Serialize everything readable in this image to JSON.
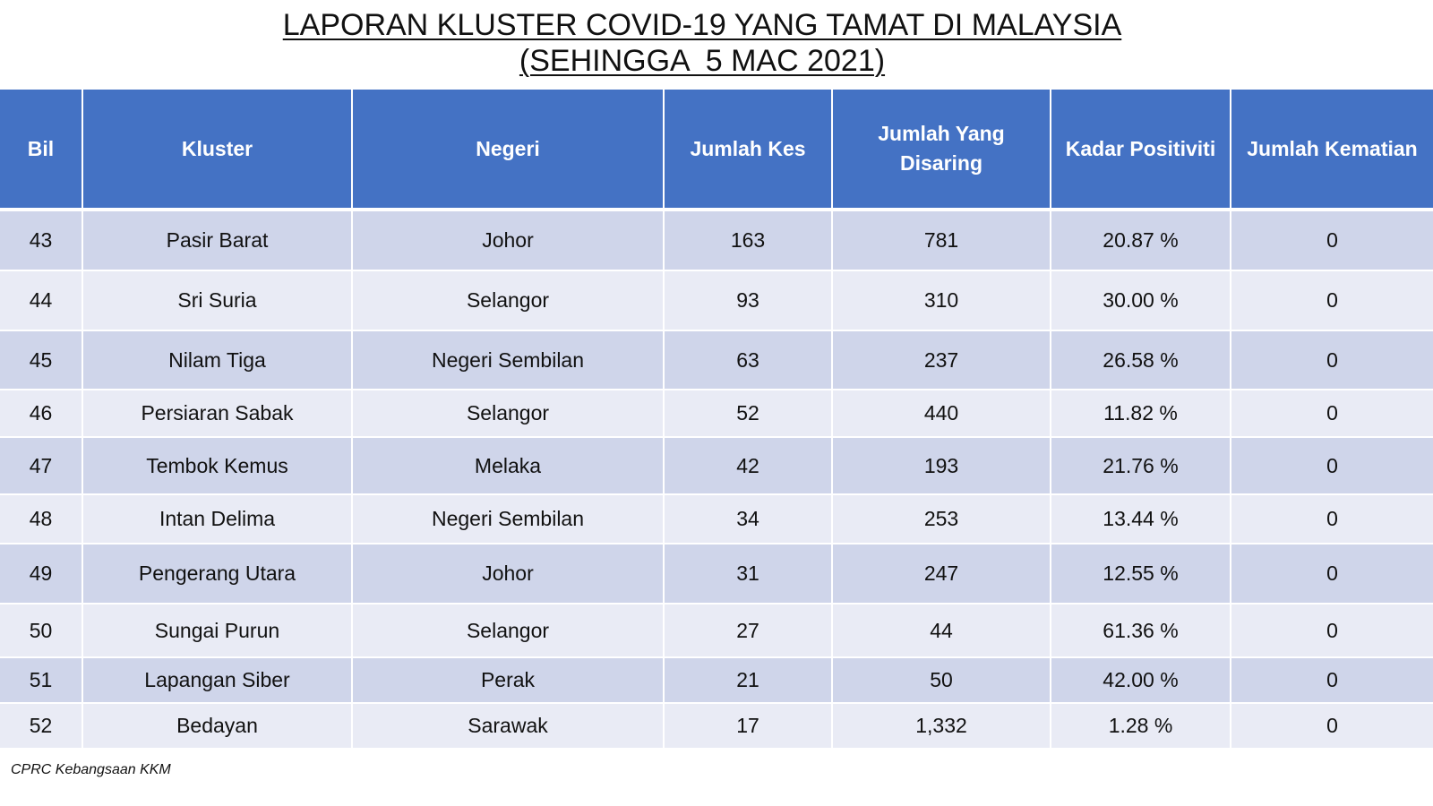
{
  "title": {
    "line1": "LAPORAN KLUSTER COVID-19 YANG TAMAT DI MALAYSIA",
    "line2": "(SEHINGGA  5 MAC 2021)"
  },
  "table": {
    "headers": [
      "Bil",
      "Kluster",
      "Negeri",
      "Jumlah Kes",
      "Jumlah Yang Disaring",
      "Kadar Positiviti",
      "Jumlah Kematian"
    ],
    "rows": [
      [
        "43",
        "Pasir Barat",
        "Johor",
        "163",
        "781",
        "20.87 %",
        "0"
      ],
      [
        "44",
        "Sri Suria",
        "Selangor",
        "93",
        "310",
        "30.00 %",
        "0"
      ],
      [
        "45",
        "Nilam Tiga",
        "Negeri Sembilan",
        "63",
        "237",
        "26.58 %",
        "0"
      ],
      [
        "46",
        "Persiaran Sabak",
        "Selangor",
        "52",
        "440",
        "11.82 %",
        "0"
      ],
      [
        "47",
        "Tembok Kemus",
        "Melaka",
        "42",
        "193",
        "21.76 %",
        "0"
      ],
      [
        "48",
        "Intan Delima",
        "Negeri Sembilan",
        "34",
        "253",
        "13.44 %",
        "0"
      ],
      [
        "49",
        "Pengerang Utara",
        "Johor",
        "31",
        "247",
        "12.55 %",
        "0"
      ],
      [
        "50",
        "Sungai Purun",
        "Selangor",
        "27",
        "44",
        "61.36 %",
        "0"
      ],
      [
        "51",
        "Lapangan Siber",
        "Perak",
        "21",
        "50",
        "42.00 %",
        "0"
      ],
      [
        "52",
        "Bedayan",
        "Sarawak",
        "17",
        "1,332",
        "1.28 %",
        "0"
      ]
    ]
  },
  "footer": "CPRC Kebangsaan KKM",
  "colors": {
    "header_bg": "#4472c4",
    "row_dark": "#cfd5ea",
    "row_light": "#e9ebf5"
  }
}
